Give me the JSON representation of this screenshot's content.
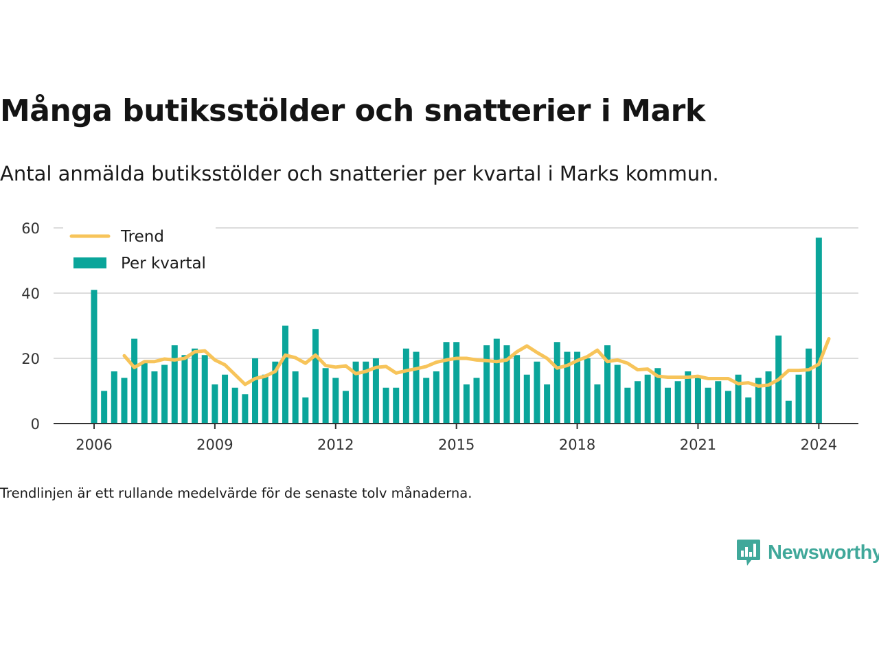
{
  "header": {
    "title": "Många butiksstölder och snatterier i Mark",
    "subtitle": "Antal anmälda butiksstölder och snatterier per kvartal i Marks kommun."
  },
  "footnote": "Trendlinjen är ett rullande medelvärde för de senaste tolv månaderna.",
  "brand": {
    "name": "Newsworthy",
    "icon": "newsworthy-logo-icon"
  },
  "colors": {
    "bar": "#0aa59a",
    "trend": "#f7c45a",
    "grid": "#dcdcdc",
    "axis": "#333333",
    "brand": "#40a89a"
  },
  "chart_data": {
    "type": "bar",
    "x_ticks": [
      "2006",
      "2009",
      "2012",
      "2015",
      "2018",
      "2021",
      "2024"
    ],
    "y_ticks": [
      0,
      20,
      40,
      60
    ],
    "ylim": [
      0,
      60
    ],
    "grid": true,
    "legend_position": "top-left",
    "series": [
      {
        "name": "Per kvartal",
        "kind": "bar",
        "start": "2006 Q1",
        "values": [
          41,
          10,
          16,
          14,
          26,
          19,
          16,
          18,
          24,
          21,
          23,
          21,
          12,
          15,
          11,
          9,
          20,
          15,
          19,
          30,
          16,
          8,
          29,
          17,
          14,
          10,
          19,
          19,
          20,
          11,
          11,
          23,
          22,
          14,
          16,
          25,
          25,
          12,
          14,
          24,
          26,
          24,
          21,
          15,
          19,
          12,
          25,
          22,
          22,
          20,
          12,
          24,
          18,
          11,
          13,
          15,
          17,
          11,
          13,
          16,
          14,
          11,
          13,
          10,
          15,
          8,
          14,
          16,
          27,
          7,
          15,
          23,
          57
        ]
      },
      {
        "name": "Trend",
        "kind": "line",
        "start": "2006 Q4",
        "values": [
          20.8,
          17.2,
          19,
          19,
          19.8,
          19.5,
          20,
          22,
          22.3,
          19.5,
          18,
          15,
          12,
          13.8,
          14.5,
          16,
          21,
          20.2,
          18.5,
          21,
          17.8,
          17.3,
          17.7,
          15.3,
          16,
          17.2,
          17.5,
          15.5,
          16.2,
          16.8,
          17.5,
          18.8,
          19.5,
          20,
          20,
          19.5,
          19.3,
          19,
          19.5,
          22,
          23.8,
          21.8,
          20,
          17,
          17.8,
          19.3,
          20.5,
          22.5,
          19,
          19.5,
          18.5,
          16.5,
          16.7,
          14.5,
          14.2,
          14.2,
          14.2,
          14.5,
          13.8,
          13.8,
          13.8,
          12.2,
          12.5,
          11.5,
          11.8,
          13.5,
          16.3,
          16.3,
          16.5,
          18.2,
          26
        ]
      }
    ]
  }
}
